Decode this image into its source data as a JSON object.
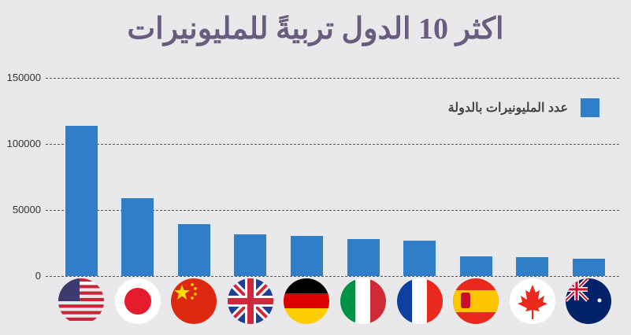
{
  "chart_data": {
    "type": "bar",
    "title": "اكثر 10 الدول تربيةً للمليونيرات",
    "categories": [
      "United States",
      "Japan",
      "China",
      "United Kingdom",
      "Germany",
      "Italy",
      "France",
      "Spain",
      "Canada",
      "Australia"
    ],
    "category_icons": [
      "flag-usa-icon",
      "flag-japan-icon",
      "flag-china-icon",
      "flag-uk-icon",
      "flag-germany-icon",
      "flag-italy-icon",
      "flag-france-icon",
      "flag-spain-icon",
      "flag-canada-icon",
      "flag-australia-icon"
    ],
    "series": [
      {
        "name": "عدد المليونيرات بالدولة",
        "color": "#2f7ec7",
        "values": [
          113700,
          59000,
          39300,
          31500,
          30400,
          28000,
          26800,
          14900,
          14300,
          13100
        ]
      }
    ],
    "xlabel": "",
    "ylabel": "",
    "ylim": [
      0,
      150000
    ],
    "yticks": [
      "0",
      "50000",
      "100000",
      "150000"
    ],
    "grid": true,
    "legend_position": "top-right"
  },
  "title": "اكثر 10 الدول تربيةً للمليونيرات",
  "legend": {
    "label": "عدد المليونيرات بالدولة",
    "color": "#2f7ec7"
  },
  "colors": {
    "bar": "#2f7ec7",
    "title": "#6a5c7e",
    "background": "#e9e9eb"
  }
}
